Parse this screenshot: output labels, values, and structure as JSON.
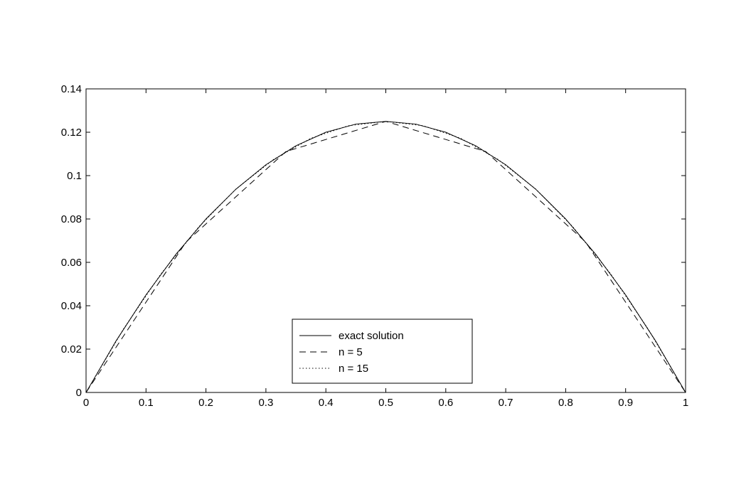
{
  "chart_data": {
    "type": "line",
    "title": "",
    "xlabel": "",
    "ylabel": "",
    "xlim": [
      0,
      1
    ],
    "ylim": [
      0,
      0.14
    ],
    "xticks": [
      0,
      0.1,
      0.2,
      0.3,
      0.4,
      0.5,
      0.6,
      0.7,
      0.8,
      0.9,
      1
    ],
    "xtick_labels": [
      "0",
      "0.1",
      "0.2",
      "0.3",
      "0.4",
      "0.5",
      "0.6",
      "0.7",
      "0.8",
      "0.9",
      "1"
    ],
    "yticks": [
      0,
      0.02,
      0.04,
      0.06,
      0.08,
      0.1,
      0.12,
      0.14
    ],
    "ytick_labels": [
      "0",
      "0.02",
      "0.04",
      "0.06",
      "0.08",
      "0.1",
      "0.12",
      "0.14"
    ],
    "grid": false,
    "legend_position": "bottom-center",
    "series": [
      {
        "name": "exact solution",
        "style": "solid",
        "x": [
          0,
          0.05,
          0.1,
          0.15,
          0.2,
          0.25,
          0.3,
          0.35,
          0.4,
          0.45,
          0.5,
          0.55,
          0.6,
          0.65,
          0.7,
          0.75,
          0.8,
          0.85,
          0.9,
          0.95,
          1
        ],
        "y": [
          0,
          0.02375,
          0.045,
          0.06375,
          0.08,
          0.09375,
          0.105,
          0.11375,
          0.12,
          0.12375,
          0.125,
          0.12375,
          0.12,
          0.11375,
          0.105,
          0.09375,
          0.08,
          0.06375,
          0.045,
          0.02375,
          0
        ]
      },
      {
        "name": "n = 5",
        "style": "dashed",
        "x": [
          0,
          0.1667,
          0.3333,
          0.5,
          0.6667,
          0.8333,
          1
        ],
        "y": [
          0,
          0.0694,
          0.1111,
          0.125,
          0.1111,
          0.0694,
          0
        ]
      },
      {
        "name": "n = 15",
        "style": "dotted",
        "x": [
          0,
          0.0625,
          0.125,
          0.1875,
          0.25,
          0.3125,
          0.375,
          0.4375,
          0.5,
          0.5625,
          0.625,
          0.6875,
          0.75,
          0.8125,
          0.875,
          0.9375,
          1
        ],
        "y": [
          0,
          0.0293,
          0.0547,
          0.0762,
          0.0938,
          0.1074,
          0.1172,
          0.123,
          0.125,
          0.123,
          0.1172,
          0.1074,
          0.0938,
          0.0762,
          0.0547,
          0.0293,
          0
        ]
      }
    ]
  }
}
